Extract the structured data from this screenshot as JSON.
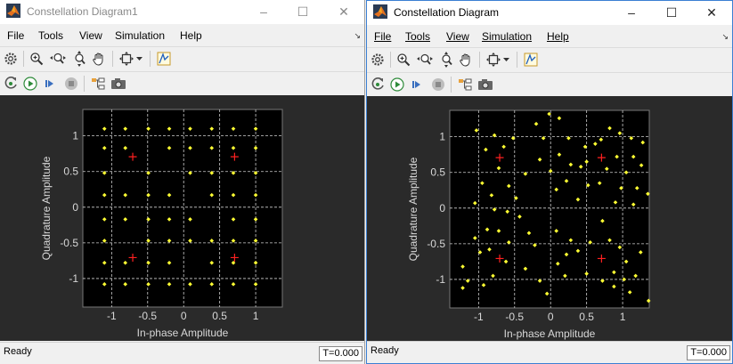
{
  "windows": [
    {
      "title": "Constellation Diagram1",
      "menu": [
        "File",
        "Tools",
        "View",
        "Simulation",
        "Help"
      ],
      "status": "Ready",
      "time": "T=0.000",
      "chart_data": {
        "type": "scatter",
        "xlabel": "In-phase Amplitude",
        "ylabel": "Quadrature Amplitude",
        "xlim": [
          -1.4,
          1.37
        ],
        "ylim": [
          -1.4,
          1.37
        ],
        "xticks": [
          "-1",
          "-0.5",
          "0",
          "0.5",
          "1"
        ],
        "yticks": [
          "1",
          "0.5",
          "0",
          "-0.5",
          "-1"
        ],
        "grid": true,
        "reference_points": [
          [
            -0.707,
            0.707
          ],
          [
            0.707,
            0.707
          ],
          [
            -0.707,
            -0.707
          ],
          [
            0.707,
            -0.707
          ]
        ],
        "received_points": [
          [
            -1.1,
            1.1
          ],
          [
            -0.81,
            1.1
          ],
          [
            -0.49,
            1.1
          ],
          [
            -0.2,
            1.1
          ],
          [
            0.09,
            1.1
          ],
          [
            0.39,
            1.1
          ],
          [
            0.69,
            1.1
          ],
          [
            1.0,
            1.1
          ],
          [
            -1.1,
            0.83
          ],
          [
            -0.81,
            0.83
          ],
          [
            -0.2,
            0.83
          ],
          [
            0.09,
            0.83
          ],
          [
            0.39,
            0.83
          ],
          [
            0.69,
            0.83
          ],
          [
            1.0,
            0.83
          ],
          [
            -1.1,
            0.48
          ],
          [
            -0.49,
            0.48
          ],
          [
            0.09,
            0.48
          ],
          [
            0.39,
            0.48
          ],
          [
            0.69,
            0.48
          ],
          [
            1.0,
            0.48
          ],
          [
            -1.1,
            0.17
          ],
          [
            -0.81,
            0.17
          ],
          [
            -0.49,
            0.17
          ],
          [
            -0.2,
            0.17
          ],
          [
            0.39,
            0.17
          ],
          [
            0.69,
            0.17
          ],
          [
            1.0,
            0.17
          ],
          [
            -1.1,
            -0.17
          ],
          [
            -0.81,
            -0.17
          ],
          [
            -0.49,
            -0.17
          ],
          [
            -0.2,
            -0.17
          ],
          [
            0.09,
            -0.17
          ],
          [
            0.69,
            -0.17
          ],
          [
            1.0,
            -0.17
          ],
          [
            -1.1,
            -0.47
          ],
          [
            -0.49,
            -0.47
          ],
          [
            -0.2,
            -0.47
          ],
          [
            0.09,
            -0.47
          ],
          [
            0.39,
            -0.47
          ],
          [
            0.69,
            -0.47
          ],
          [
            1.0,
            -0.47
          ],
          [
            -1.1,
            -0.78
          ],
          [
            -0.81,
            -0.78
          ],
          [
            -0.49,
            -0.78
          ],
          [
            -0.2,
            -0.78
          ],
          [
            0.39,
            -0.78
          ],
          [
            0.69,
            -0.78
          ],
          [
            1.0,
            -0.78
          ],
          [
            -1.1,
            -1.08
          ],
          [
            -0.81,
            -1.08
          ],
          [
            -0.49,
            -1.08
          ],
          [
            -0.2,
            -1.08
          ],
          [
            0.09,
            -1.08
          ],
          [
            0.39,
            -1.08
          ],
          [
            0.69,
            -1.08
          ],
          [
            1.0,
            -1.08
          ]
        ]
      }
    },
    {
      "title": "Constellation Diagram",
      "menu": [
        "File",
        "Tools",
        "View",
        "Simulation",
        "Help"
      ],
      "status": "Ready",
      "time": "T=0.000",
      "chart_data": {
        "type": "scatter",
        "xlabel": "In-phase Amplitude",
        "ylabel": "Quadrature Amplitude",
        "xlim": [
          -1.4,
          1.37
        ],
        "ylim": [
          -1.4,
          1.37
        ],
        "xticks": [
          "-1",
          "-0.5",
          "0",
          "0.5",
          "1"
        ],
        "yticks": [
          "1",
          "0.5",
          "0",
          "-0.5",
          "-1"
        ],
        "grid": true,
        "reference_points": [
          [
            -0.707,
            0.707
          ],
          [
            0.707,
            0.707
          ],
          [
            -0.707,
            -0.707
          ],
          [
            0.707,
            -0.707
          ]
        ],
        "received_points": [
          [
            -1.03,
            1.09
          ],
          [
            -0.78,
            1.02
          ],
          [
            -0.52,
            0.98
          ],
          [
            -0.65,
            0.86
          ],
          [
            -0.9,
            0.82
          ],
          [
            -0.72,
            0.56
          ],
          [
            -0.95,
            0.35
          ],
          [
            -0.58,
            0.31
          ],
          [
            -0.82,
            0.18
          ],
          [
            -0.48,
            0.14
          ],
          [
            -0.6,
            -0.05
          ],
          [
            -0.78,
            -0.02
          ],
          [
            -0.43,
            -0.12
          ],
          [
            -1.05,
            0.07
          ],
          [
            -0.35,
            0.48
          ],
          [
            -0.2,
            1.18
          ],
          [
            -0.02,
            1.32
          ],
          [
            0.12,
            1.26
          ],
          [
            -0.1,
            0.98
          ],
          [
            0.25,
            0.98
          ],
          [
            0.12,
            0.75
          ],
          [
            0.48,
            0.86
          ],
          [
            0.28,
            0.61
          ],
          [
            0.42,
            0.58
          ],
          [
            0.22,
            0.38
          ],
          [
            0.0,
            0.52
          ],
          [
            -0.15,
            0.68
          ],
          [
            0.38,
            0.12
          ],
          [
            0.08,
            0.26
          ],
          [
            0.52,
            0.32
          ],
          [
            0.62,
            0.9
          ],
          [
            0.5,
            0.65
          ],
          [
            0.82,
            1.12
          ],
          [
            0.96,
            1.05
          ],
          [
            0.7,
            0.96
          ],
          [
            1.12,
            0.98
          ],
          [
            1.28,
            0.92
          ],
          [
            0.92,
            0.72
          ],
          [
            1.15,
            0.72
          ],
          [
            0.78,
            0.55
          ],
          [
            1.05,
            0.5
          ],
          [
            1.26,
            0.6
          ],
          [
            0.98,
            0.28
          ],
          [
            1.2,
            0.28
          ],
          [
            0.68,
            0.35
          ],
          [
            0.9,
            0.08
          ],
          [
            1.15,
            0.05
          ],
          [
            0.72,
            -0.18
          ],
          [
            1.35,
            0.2
          ],
          [
            -1.22,
            -0.82
          ],
          [
            -1.15,
            -1.02
          ],
          [
            -0.93,
            -1.08
          ],
          [
            -0.8,
            -0.95
          ],
          [
            -0.62,
            -0.75
          ],
          [
            -1.05,
            -0.42
          ],
          [
            -0.88,
            -0.3
          ],
          [
            -0.72,
            -0.32
          ],
          [
            -0.58,
            -0.48
          ],
          [
            -0.98,
            -0.62
          ],
          [
            -1.22,
            -1.12
          ],
          [
            -0.85,
            -0.58
          ],
          [
            -0.3,
            -0.35
          ],
          [
            -0.22,
            -0.52
          ],
          [
            -0.15,
            -1.02
          ],
          [
            -0.05,
            -1.2
          ],
          [
            0.1,
            -0.78
          ],
          [
            0.22,
            -0.65
          ],
          [
            0.08,
            -0.32
          ],
          [
            0.38,
            -0.6
          ],
          [
            0.5,
            -0.92
          ],
          [
            0.2,
            -0.95
          ],
          [
            -0.35,
            -0.85
          ],
          [
            0.28,
            -0.45
          ],
          [
            0.82,
            -0.45
          ],
          [
            0.96,
            -0.55
          ],
          [
            1.05,
            -0.75
          ],
          [
            0.88,
            -0.9
          ],
          [
            1.02,
            -1.0
          ],
          [
            1.18,
            -0.95
          ],
          [
            0.72,
            -1.02
          ],
          [
            0.88,
            -1.1
          ],
          [
            1.25,
            -0.62
          ],
          [
            1.36,
            -1.3
          ],
          [
            0.55,
            -0.48
          ],
          [
            1.1,
            -1.18
          ]
        ]
      }
    }
  ]
}
